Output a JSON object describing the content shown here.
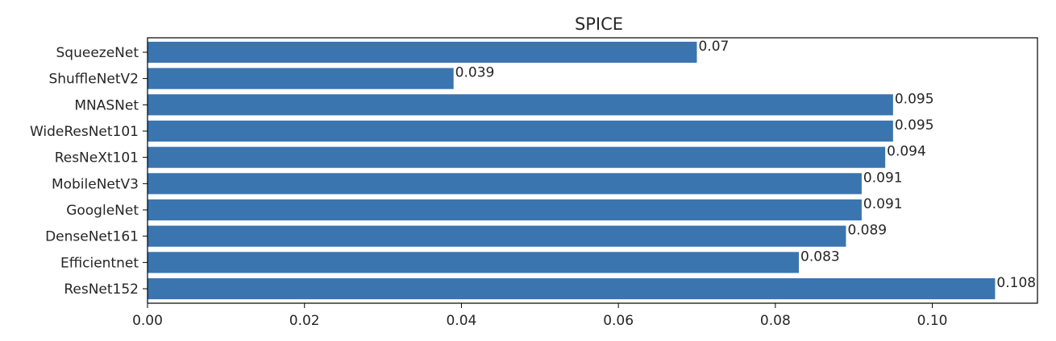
{
  "chart_data": {
    "type": "bar",
    "orientation": "horizontal",
    "title": "SPICE",
    "xlabel": "",
    "ylabel": "",
    "categories": [
      "SqueezeNet",
      "ShuffleNetV2",
      "MNASNet",
      "WideResNet101",
      "ResNeXt101",
      "MobileNetV3",
      "GoogleNet",
      "DenseNet161",
      "Efficientnet",
      "ResNet152"
    ],
    "values": [
      0.07,
      0.039,
      0.095,
      0.095,
      0.094,
      0.091,
      0.091,
      0.089,
      0.083,
      0.108
    ],
    "data_labels": [
      "0.07",
      "0.039",
      "0.095",
      "0.095",
      "0.094",
      "0.091",
      "0.091",
      "0.089",
      "0.083",
      "0.108"
    ],
    "xlim": [
      0,
      0.1134
    ],
    "xticks": [
      0,
      0.02,
      0.04,
      0.06,
      0.08,
      0.1
    ],
    "xtick_labels": [
      "0.00",
      "0.02",
      "0.04",
      "0.06",
      "0.08",
      "0.10"
    ],
    "grid": false,
    "bar_color": "#3a75b0"
  }
}
